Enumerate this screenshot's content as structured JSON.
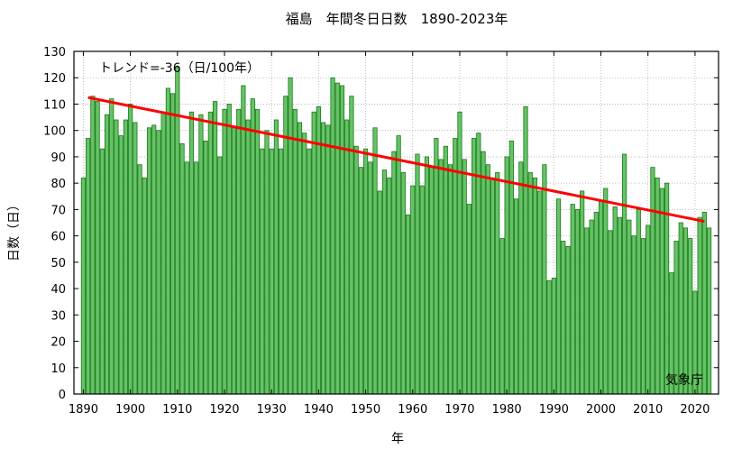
{
  "chart_data": {
    "type": "bar",
    "title": "福島　年間冬日日数　1890-2023年",
    "xlabel": "年",
    "ylabel": "日数（日）",
    "xlim": [
      1888,
      2025
    ],
    "ylim": [
      0,
      130
    ],
    "yticks": [
      0,
      10,
      20,
      30,
      40,
      50,
      60,
      70,
      80,
      90,
      100,
      110,
      120,
      130
    ],
    "xticks": [
      1890,
      1900,
      1910,
      1920,
      1930,
      1940,
      1950,
      1960,
      1970,
      1980,
      1990,
      2000,
      2010,
      2020
    ],
    "grid": true,
    "bar_color": "#66c266",
    "bar_edge_color": "#1a7a1a",
    "trend_color": "#ff0000",
    "trend_label": "トレンド=-36（日/100年）",
    "trend": {
      "x": [
        1891,
        2022
      ],
      "y": [
        112.5,
        65.5
      ]
    },
    "credit": "気象庁",
    "start_year": 1890,
    "values": [
      82,
      97,
      113,
      111,
      93,
      106,
      112,
      104,
      98,
      104,
      110,
      103,
      87,
      82,
      101,
      102,
      100,
      107,
      116,
      114,
      124,
      95,
      88,
      107,
      88,
      106,
      96,
      107,
      111,
      90,
      108,
      110,
      101,
      108,
      117,
      104,
      112,
      108,
      93,
      100,
      93,
      104,
      93,
      113,
      120,
      108,
      103,
      99,
      93,
      107,
      109,
      103,
      102,
      120,
      118,
      117,
      104,
      113,
      94,
      86,
      93,
      88,
      101,
      77,
      85,
      82,
      92,
      98,
      84,
      68,
      79,
      91,
      79,
      90,
      86,
      97,
      89,
      94,
      87,
      97,
      107,
      89,
      72,
      97,
      99,
      92,
      87,
      82,
      84,
      59,
      90,
      96,
      74,
      88,
      109,
      84,
      82,
      77,
      87,
      43,
      44,
      74,
      58,
      56,
      72,
      70,
      77,
      63,
      66,
      69,
      73,
      78,
      62,
      71,
      67,
      91,
      66,
      60,
      70,
      59,
      64,
      86,
      82,
      78,
      80,
      46,
      58,
      65,
      63,
      59,
      39,
      67,
      69,
      63
    ]
  }
}
